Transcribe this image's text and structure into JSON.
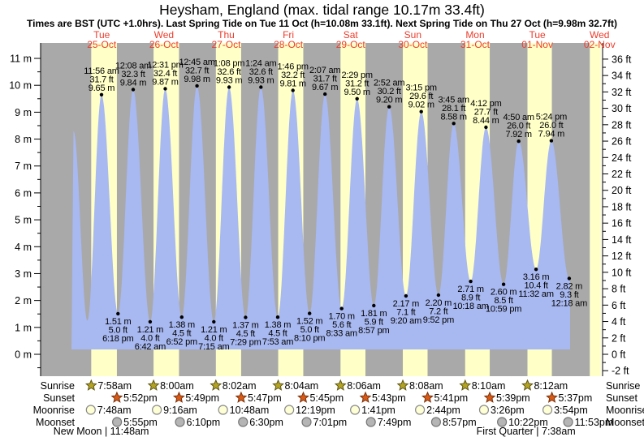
{
  "title": "Heysham, England (max. tidal range 10.17m 33.4ft)",
  "subtitle": "Times are BST (UTC +1.0hrs). Last Spring Tide on Tue 11 Oct (h=10.08m 33.1ft). Next Spring Tide on Thu 27 Oct (h=9.98m 32.7ft)",
  "colors": {
    "night_band": "#a9a9a9",
    "day_band": "#ffffc8",
    "tide_fill": "#a8b8f0",
    "day_label": "#ee3c2c",
    "sunrise_star": "#b3a325",
    "sunrise_star_edge": "#5f5713",
    "sunset_star": "#d85a17",
    "sunset_star_edge": "#7a330d",
    "moonrise_circle": "#ffffd6",
    "moonrise_circle_edge": "#8a8a8a",
    "moonset_circle": "#b5b5b5",
    "moonset_circle_edge": "#777777"
  },
  "chart_data": {
    "type": "area",
    "title": "Heysham, England tide heights",
    "ylabel_left": "m",
    "ylabel_right": "ft",
    "ylim_m": [
      0,
      11
    ],
    "ylim_ft": [
      -2,
      36
    ],
    "days": [
      {
        "dow": "Tue",
        "date": "25-Oct"
      },
      {
        "dow": "Wed",
        "date": "26-Oct"
      },
      {
        "dow": "Thu",
        "date": "27-Oct"
      },
      {
        "dow": "Fri",
        "date": "28-Oct"
      },
      {
        "dow": "Sat",
        "date": "29-Oct"
      },
      {
        "dow": "Sun",
        "date": "30-Oct"
      },
      {
        "dow": "Mon",
        "date": "31-Oct"
      },
      {
        "dow": "Tue",
        "date": "01-Nov"
      },
      {
        "dow": "Wed",
        "date": "02-Nov"
      }
    ],
    "tides": [
      {
        "day": 0,
        "type": "high",
        "time": "11:56 am",
        "height_m": 9.65,
        "height_ft": 31.7
      },
      {
        "day": 0,
        "type": "low",
        "time": "6:18 pm",
        "height_m": 1.51,
        "height_ft": 5.0
      },
      {
        "day": 1,
        "type": "high",
        "time": "12:08 am",
        "height_m": 9.84,
        "height_ft": 32.3
      },
      {
        "day": 1,
        "type": "low",
        "time": "6:42 am",
        "height_m": 1.21,
        "height_ft": 4.0
      },
      {
        "day": 1,
        "type": "high",
        "time": "12:31 pm",
        "height_m": 9.87,
        "height_ft": 32.4
      },
      {
        "day": 1,
        "type": "low",
        "time": "6:52 pm",
        "height_m": 1.38,
        "height_ft": 4.5
      },
      {
        "day": 2,
        "type": "high",
        "time": "12:45 am",
        "height_m": 9.98,
        "height_ft": 32.7
      },
      {
        "day": 2,
        "type": "low",
        "time": "7:15 am",
        "height_m": 1.21,
        "height_ft": 4.0
      },
      {
        "day": 2,
        "type": "high",
        "time": "1:08 pm",
        "height_m": 9.93,
        "height_ft": 32.6
      },
      {
        "day": 2,
        "type": "low",
        "time": "7:29 pm",
        "height_m": 1.37,
        "height_ft": 4.5
      },
      {
        "day": 3,
        "type": "high",
        "time": "1:24 am",
        "height_m": 9.93,
        "height_ft": 32.6
      },
      {
        "day": 3,
        "type": "low",
        "time": "7:53 am",
        "height_m": 1.38,
        "height_ft": 4.5
      },
      {
        "day": 3,
        "type": "high",
        "time": "1:46 pm",
        "height_m": 9.81,
        "height_ft": 32.2
      },
      {
        "day": 3,
        "type": "low",
        "time": "8:10 pm",
        "height_m": 1.52,
        "height_ft": 5.0
      },
      {
        "day": 4,
        "type": "high",
        "time": "2:07 am",
        "height_m": 9.67,
        "height_ft": 31.7
      },
      {
        "day": 4,
        "type": "low",
        "time": "8:33 am",
        "height_m": 1.7,
        "height_ft": 5.6
      },
      {
        "day": 4,
        "type": "high",
        "time": "2:29 pm",
        "height_m": 9.5,
        "height_ft": 31.2
      },
      {
        "day": 4,
        "type": "low",
        "time": "8:57 pm",
        "height_m": 1.81,
        "height_ft": 5.9
      },
      {
        "day": 5,
        "type": "high",
        "time": "2:52 am",
        "height_m": 9.2,
        "height_ft": 30.2
      },
      {
        "day": 5,
        "type": "low",
        "time": "9:20 am",
        "height_m": 2.17,
        "height_ft": 7.1
      },
      {
        "day": 5,
        "type": "high",
        "time": "3:15 pm",
        "height_m": 9.02,
        "height_ft": 29.6
      },
      {
        "day": 5,
        "type": "low",
        "time": "9:52 pm",
        "height_m": 2.2,
        "height_ft": 7.2
      },
      {
        "day": 6,
        "type": "high",
        "time": "3:45 am",
        "height_m": 8.58,
        "height_ft": 28.1
      },
      {
        "day": 6,
        "type": "low",
        "time": "10:18 am",
        "height_m": 2.71,
        "height_ft": 8.9
      },
      {
        "day": 6,
        "type": "high",
        "time": "4:12 pm",
        "height_m": 8.44,
        "height_ft": 27.7
      },
      {
        "day": 6,
        "type": "low",
        "time": "10:59 pm",
        "height_m": 2.6,
        "height_ft": 8.5
      },
      {
        "day": 7,
        "type": "high",
        "time": "4:50 am",
        "height_m": 7.92,
        "height_ft": 26.0
      },
      {
        "day": 7,
        "type": "low",
        "time": "11:32 am",
        "height_m": 3.16,
        "height_ft": 10.4
      },
      {
        "day": 7,
        "type": "high",
        "time": "5:24 pm",
        "height_m": 7.94,
        "height_ft": 26.0
      },
      {
        "day": 8,
        "type": "low",
        "time": "12:18 am",
        "height_m": 2.82,
        "height_ft": 9.3
      }
    ],
    "unlabeled_curve_points": [
      {
        "day_frac": 0.047,
        "height_m": 8.3
      },
      {
        "day_frac": 0.27,
        "height_m": 1.25
      },
      {
        "day_frac": 8.27,
        "height_m": 8.0
      }
    ]
  },
  "astro": {
    "rows": [
      {
        "label": "Sunrise",
        "icon": "sunrise-star-icon",
        "times": [
          "7:58am",
          "8:00am",
          "8:02am",
          "8:04am",
          "8:06am",
          "8:08am",
          "8:10am",
          "8:12am"
        ]
      },
      {
        "label": "Sunset",
        "icon": "sunset-star-icon",
        "times": [
          "5:52pm",
          "5:49pm",
          "5:47pm",
          "5:45pm",
          "5:43pm",
          "5:41pm",
          "5:39pm",
          "5:37pm"
        ]
      },
      {
        "label": "Moonrise",
        "icon": "moonrise-circle-icon",
        "times": [
          "7:48am",
          "9:16am",
          "10:48am",
          "12:19pm",
          "1:41pm",
          "2:44pm",
          "3:26pm",
          "3:54pm"
        ]
      },
      {
        "label": "Moonset",
        "icon": "moonset-circle-icon",
        "times": [
          "5:55pm",
          "6:10pm",
          "6:30pm",
          "7:01pm",
          "7:49pm",
          "8:57pm",
          "10:22pm",
          "11:53pm"
        ]
      }
    ],
    "moon_phases": [
      {
        "day": 0,
        "time": "11:48am",
        "text": "New Moon | 11:48am"
      },
      {
        "day": 7,
        "time": "7:38am",
        "text": "First Quarter | 7:38am"
      }
    ]
  }
}
